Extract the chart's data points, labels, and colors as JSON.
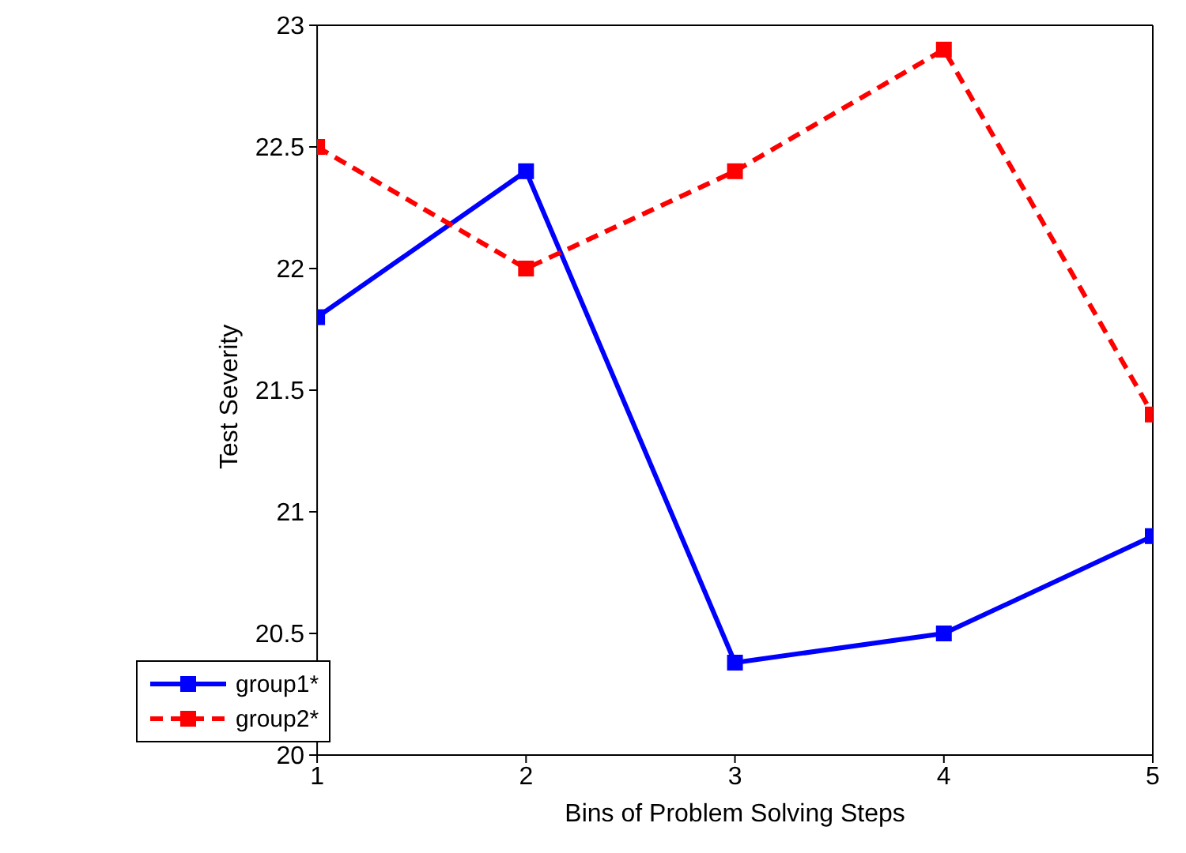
{
  "chart_data": {
    "type": "line",
    "xlabel": "Bins of Problem Solving Steps",
    "ylabel": "Test Severity",
    "x": [
      1,
      2,
      3,
      4,
      5
    ],
    "xlim": [
      1,
      5
    ],
    "xticks": [
      1,
      2,
      3,
      4,
      5
    ],
    "ylim": [
      20,
      23
    ],
    "yticks": [
      20,
      20.5,
      21,
      21.5,
      22,
      22.5,
      23
    ],
    "grid": false,
    "legend": "bottom left",
    "marker": "square",
    "series": [
      {
        "name": "group1*",
        "color": "#0000ff",
        "line_style": "solid",
        "values": [
          21.8,
          22.4,
          20.38,
          20.5,
          20.9
        ]
      },
      {
        "name": "group2*",
        "color": "#ff0000",
        "line_style": "dashed",
        "values": [
          22.5,
          22.0,
          22.4,
          22.9,
          21.4
        ]
      }
    ]
  }
}
